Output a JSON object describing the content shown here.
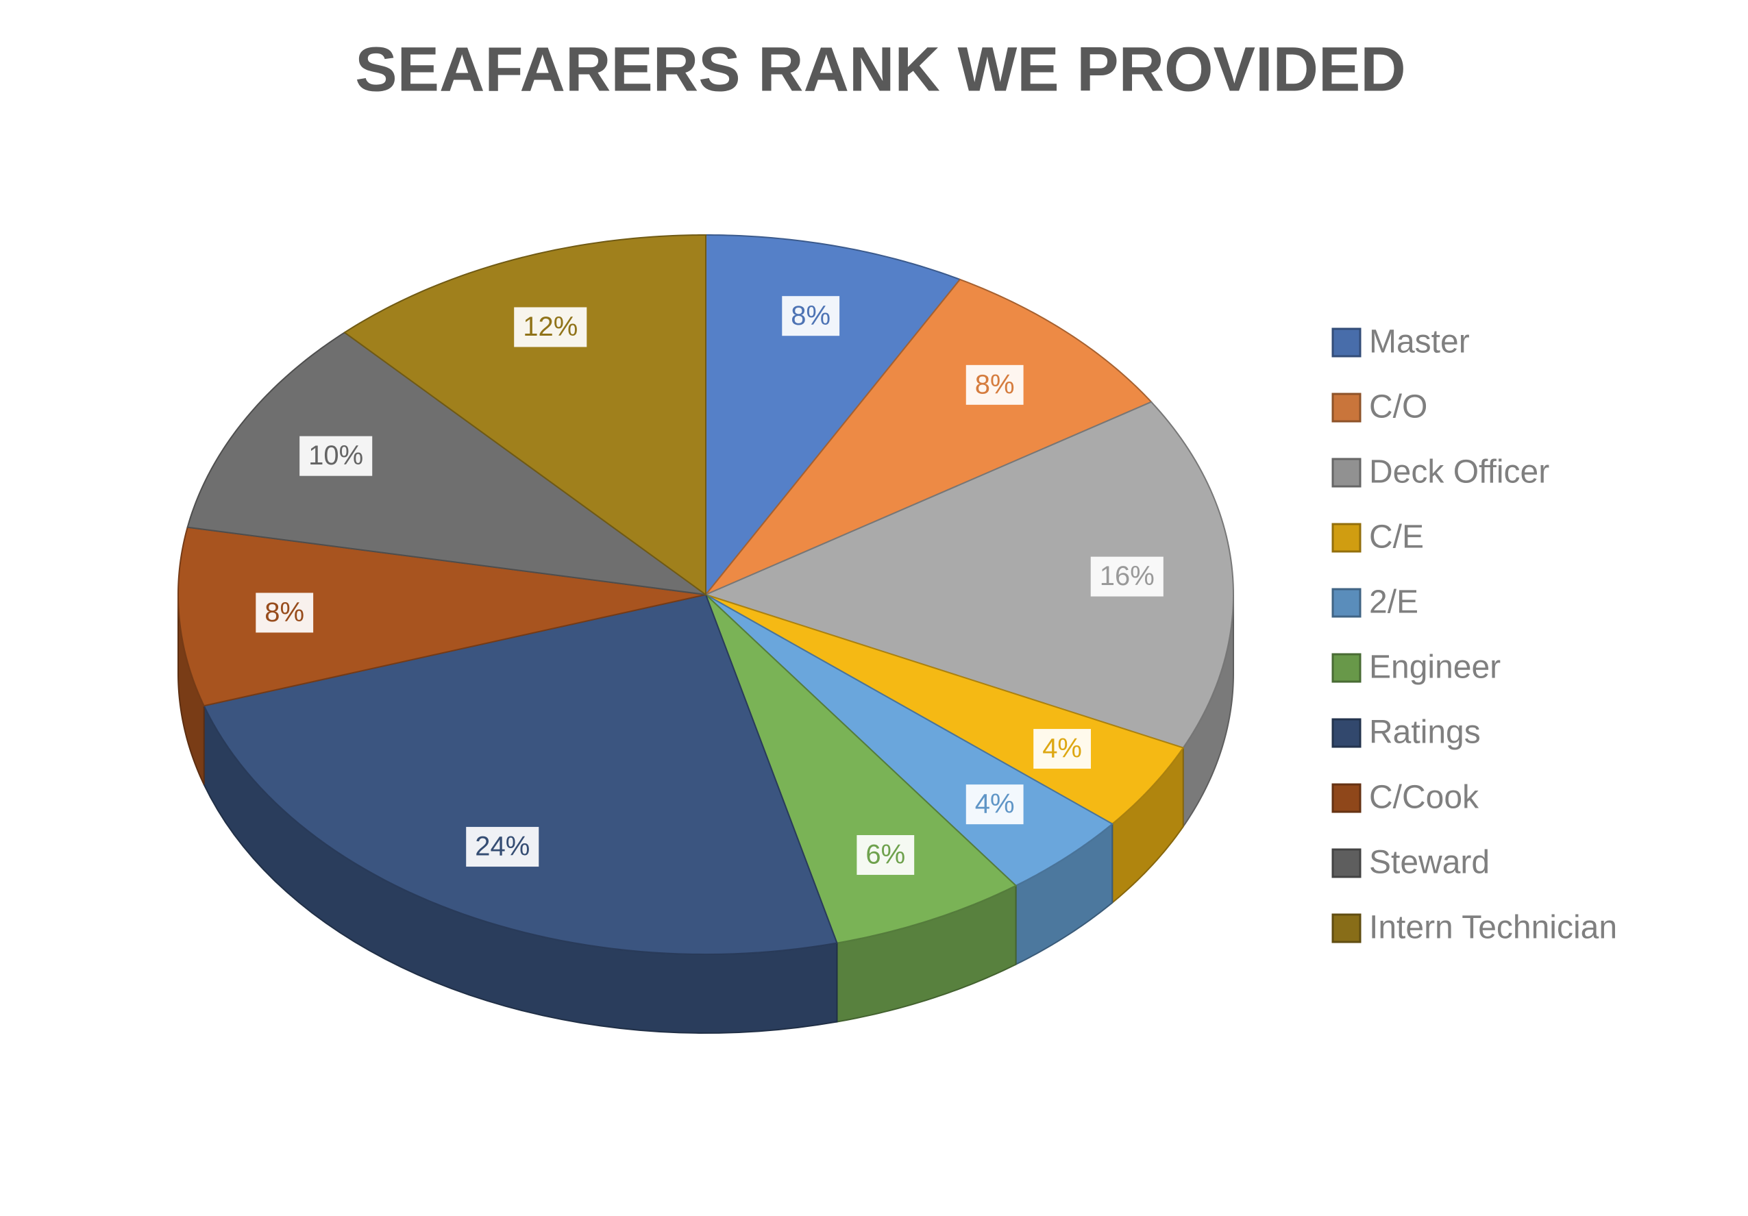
{
  "chart_data": {
    "type": "pie",
    "title": "SEAFARERS RANK WE PROVIDED",
    "categories": [
      "Master",
      "C/O",
      "Deck Officer",
      "C/E",
      "2/E",
      "Engineer",
      "Ratings",
      "C/Cook",
      "Steward",
      "Intern Technician"
    ],
    "values": [
      8,
      8,
      16,
      4,
      4,
      6,
      24,
      8,
      10,
      12
    ],
    "value_labels": [
      "8%",
      "8%",
      "16%",
      "4%",
      "4%",
      "6%",
      "24%",
      "8%",
      "10%",
      "12%"
    ],
    "colors": [
      "#5580c8",
      "#ed8a45",
      "#aaaaaa",
      "#f5b914",
      "#6aa6dc",
      "#7ab356",
      "#3b5580",
      "#a8541f",
      "#6f6f6f",
      "#a0801c"
    ],
    "legend": "right"
  }
}
